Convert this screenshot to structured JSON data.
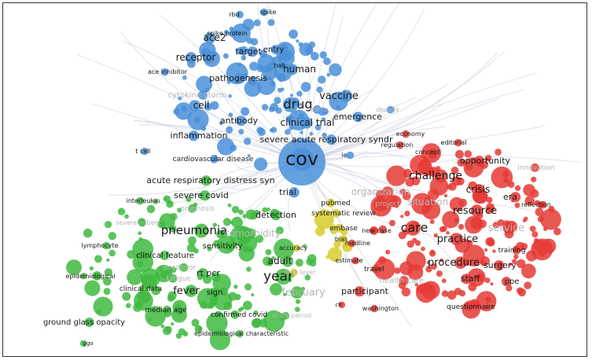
{
  "colors": {
    "blue": "#4a90d9",
    "green": "#3fba3f",
    "red": "#e53935",
    "yellow": "#d8cc2a",
    "text": "#1a1a1a",
    "faded": "#b5b5b5",
    "edge": "#c9cfe0"
  },
  "clusters": [
    {
      "name": "blue",
      "labels": [
        "rbd",
        "spike",
        "spike protein",
        "ace2",
        "target",
        "entry",
        "receptor",
        "bat",
        "human",
        "ace inhibitor",
        "pathogenesis",
        "cytokine storm",
        "vaccine",
        "cell",
        "drug",
        "mers",
        "decade",
        "emergence",
        "antibody",
        "clinical trial",
        "inflammation",
        "severe acute respiratory syndr",
        "t cell",
        "cardiovascular disease",
        "cov",
        "ie",
        "trial"
      ]
    },
    {
      "name": "red",
      "labels": [
        "regulation",
        "economy",
        "editorial",
        "concept",
        "opportunity",
        "innovation",
        "challenge",
        "crisis",
        "organization",
        "situation",
        "project",
        "era",
        "reflection",
        "resource",
        "service",
        "care",
        "new case",
        "practice",
        "medline",
        "training",
        "estimate",
        "procedure",
        "surgery",
        "travel",
        "staff",
        "ppe",
        "health care",
        "participant",
        "cfr",
        "washington",
        "questionnaire"
      ]
    },
    {
      "name": "green",
      "labels": [
        "acute respiratory distress syn",
        "severe covid",
        "interleukin",
        "prognosis",
        "detection",
        "severe patient",
        "pneumonia",
        "comorbidity",
        "lymphocyte",
        "sensitivity",
        "clinical feature",
        "adult",
        "predictor",
        "rt pcr",
        "year",
        "epidemiological",
        "fatigue",
        "clinical data",
        "fever",
        "sign",
        "february",
        "median age",
        "confirmed covid",
        "study period",
        "ground glass opacity",
        "epidemiological characteristic",
        "ggo"
      ]
    },
    {
      "name": "yellow",
      "labels": [
        "pubmed",
        "systematic review",
        "embase",
        "bias",
        "accuracy",
        "high level"
      ]
    }
  ]
}
